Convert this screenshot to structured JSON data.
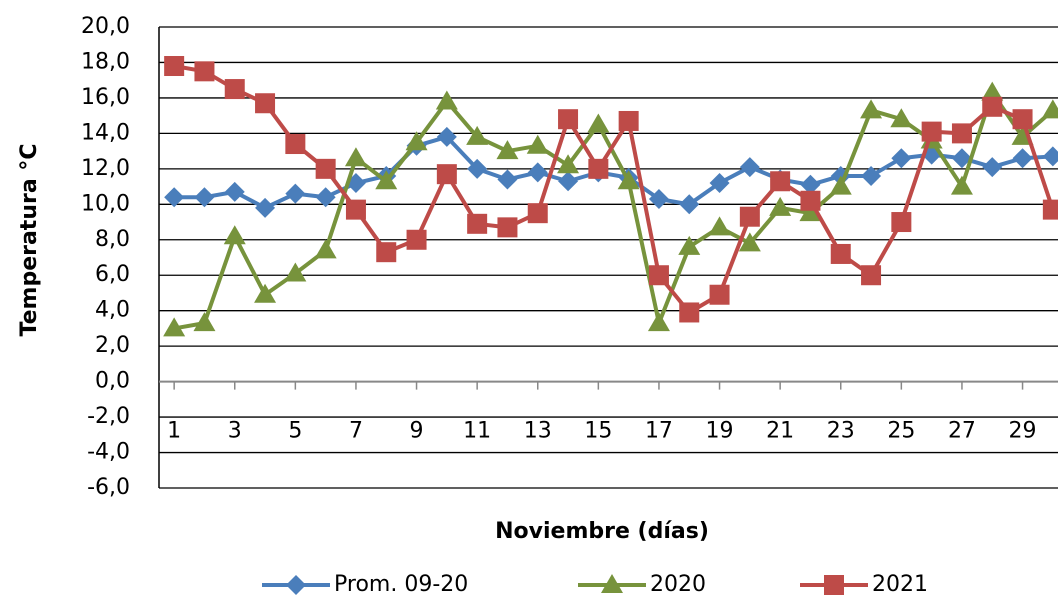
{
  "chart_data": {
    "type": "line",
    "x_label": "Noviembre (días)",
    "y_label": "Temperatura °C",
    "x": [
      1,
      2,
      3,
      4,
      5,
      6,
      7,
      8,
      9,
      10,
      11,
      12,
      13,
      14,
      15,
      16,
      17,
      18,
      19,
      20,
      21,
      22,
      23,
      24,
      25,
      26,
      27,
      28,
      29,
      30
    ],
    "xlim": [
      0.5,
      30.5
    ],
    "xticks": [
      1,
      3,
      5,
      7,
      9,
      11,
      13,
      15,
      17,
      19,
      21,
      23,
      25,
      27,
      29
    ],
    "ylim": [
      -6,
      20
    ],
    "yticks": [
      {
        "value": -6,
        "label": "-6,0"
      },
      {
        "value": -4,
        "label": "-4,0"
      },
      {
        "value": -2,
        "label": "-2,0"
      },
      {
        "value": 0,
        "label": "0,0"
      },
      {
        "value": 2,
        "label": "2,0"
      },
      {
        "value": 4,
        "label": "4,0"
      },
      {
        "value": 6,
        "label": "6,0"
      },
      {
        "value": 8,
        "label": "8,0"
      },
      {
        "value": 10,
        "label": "10,0"
      },
      {
        "value": 12,
        "label": "12,0"
      },
      {
        "value": 14,
        "label": "14,0"
      },
      {
        "value": 16,
        "label": "16,0"
      },
      {
        "value": 18,
        "label": "18,0"
      },
      {
        "value": 20,
        "label": "20,0"
      }
    ],
    "grid": true,
    "legend": "bottom",
    "series": [
      {
        "name": "Prom. 09-20",
        "color": "#4a7ebb",
        "marker": "diamond",
        "values": [
          10.4,
          10.4,
          10.7,
          9.8,
          10.6,
          10.4,
          11.2,
          11.6,
          13.3,
          13.8,
          12.0,
          11.4,
          11.8,
          11.3,
          11.8,
          11.5,
          10.3,
          10.0,
          11.2,
          12.1,
          11.4,
          11.1,
          11.6,
          11.6,
          12.6,
          12.8,
          12.6,
          12.1,
          12.6,
          12.7
        ]
      },
      {
        "name": "2020",
        "color": "#77933c",
        "marker": "triangle",
        "values": [
          3.0,
          3.3,
          8.2,
          4.9,
          6.1,
          7.4,
          12.6,
          11.3,
          13.5,
          15.8,
          13.8,
          13.0,
          13.3,
          12.2,
          14.5,
          11.3,
          3.3,
          7.6,
          8.7,
          7.8,
          9.8,
          9.5,
          11.0,
          15.3,
          14.8,
          13.6,
          11.0,
          16.3,
          13.8,
          15.3
        ]
      },
      {
        "name": "2021",
        "color": "#be4b48",
        "marker": "square",
        "values": [
          17.8,
          17.5,
          16.5,
          15.7,
          13.4,
          12.0,
          9.7,
          7.3,
          8.0,
          11.7,
          8.9,
          8.7,
          9.5,
          14.8,
          12.0,
          14.7,
          6.0,
          3.9,
          4.9,
          9.3,
          11.3,
          10.2,
          7.2,
          6.0,
          9.0,
          14.1,
          14.0,
          15.5,
          14.8,
          9.7
        ]
      }
    ]
  }
}
